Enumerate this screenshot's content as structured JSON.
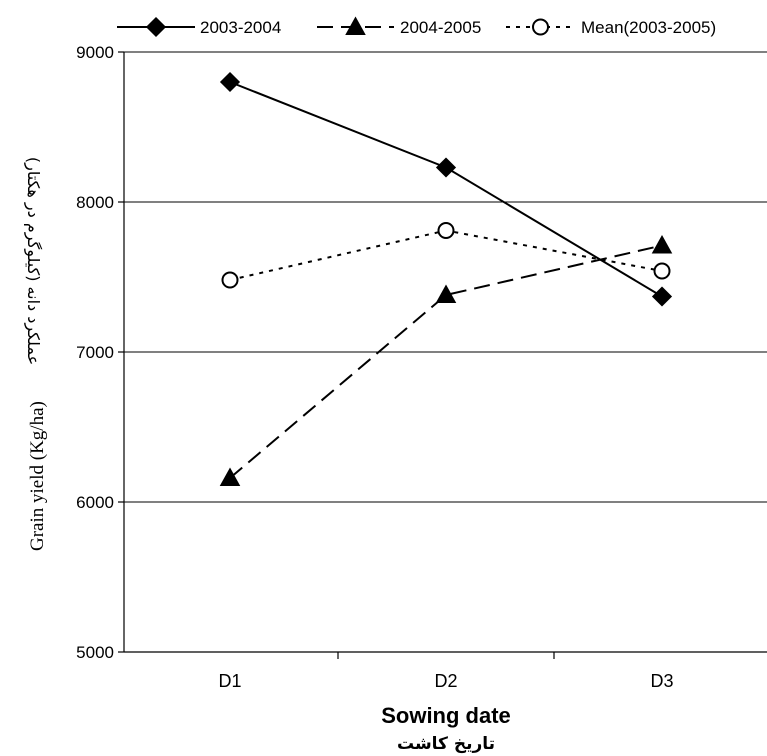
{
  "chart_data": {
    "type": "line",
    "categories": [
      "D1",
      "D2",
      "D3"
    ],
    "series": [
      {
        "name": "2003-2004",
        "values": [
          8800,
          8230,
          7370
        ],
        "marker": "diamond",
        "dash": "solid",
        "fill": "filled"
      },
      {
        "name": "2004-2005",
        "values": [
          6160,
          7380,
          7710
        ],
        "marker": "triangle",
        "dash": "dashed",
        "fill": "filled"
      },
      {
        "name": "Mean(2003-2005)",
        "values": [
          7480,
          7810,
          7540
        ],
        "marker": "circle",
        "dash": "dotted",
        "fill": "open"
      }
    ],
    "ylim": [
      5000,
      9000
    ],
    "yticks": [
      5000,
      6000,
      7000,
      8000,
      9000
    ],
    "gridlines": [
      6000,
      7000,
      8000,
      9000
    ],
    "ylabel_en": "Grain yield (Kg/ha)",
    "ylabel_fa": "عملکرد دانه (کیلوگرم در هکتار)",
    "xlabel_en": "Sowing date",
    "xlabel_fa": "تاریخ کاشت",
    "legend_position": "top",
    "colors": {
      "line": "#000000",
      "grid": "#000000",
      "background": "#ffffff"
    }
  }
}
